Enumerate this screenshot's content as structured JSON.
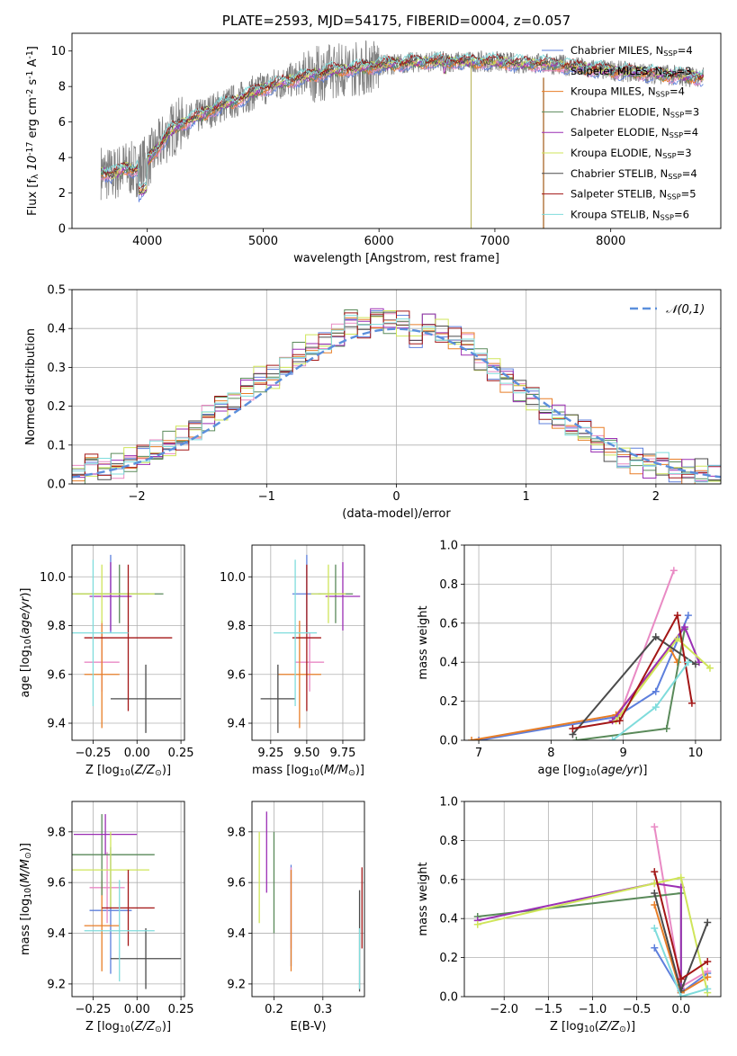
{
  "chart_data": [
    {
      "type": "line",
      "title": "PLATE=2593, MJD=54175, FIBERID=0004, z=0.057",
      "xlabel": "wavelength [Angstrom, rest frame]",
      "ylabel": "Flux [f$_\\lambda 10^{-17}$ erg cm$^{-2}$ s$^{-1}$ A$^{-1}$]",
      "xlim": [
        3350,
        8950
      ],
      "ylim": [
        0,
        11
      ],
      "xticks": [
        "4000",
        "5000",
        "6000",
        "7000",
        "8000"
      ],
      "yticks": [
        "0",
        "2",
        "4",
        "6",
        "8",
        "10"
      ],
      "observed": {
        "color": "#808080",
        "x": [
          3600,
          3700,
          3800,
          3900,
          4000,
          4100,
          4200,
          4300,
          4400,
          4500,
          4600,
          4800,
          5000,
          5200,
          5400,
          5600,
          5800,
          6000,
          6200,
          6400,
          6600,
          6800,
          7000,
          7200,
          7400,
          7600,
          7800,
          8000,
          8200,
          8400,
          8600,
          8800
        ],
        "y": [
          3.2,
          3.0,
          3.4,
          3.3,
          3.8,
          4.6,
          5.5,
          5.9,
          6.2,
          6.5,
          6.8,
          7.3,
          7.9,
          8.3,
          8.6,
          8.9,
          9.0,
          9.2,
          9.3,
          9.4,
          9.4,
          9.4,
          9.4,
          9.3,
          9.3,
          9.2,
          9.0,
          8.9,
          8.8,
          8.7,
          8.6,
          8.5
        ]
      },
      "series": [
        {
          "name": "Chabrier MILES, N$_{SSP}$=4",
          "color": "#5d7fdc"
        },
        {
          "name": "Salpeter MILES, N$_{SSP}$=3",
          "color": "#e98ac4"
        },
        {
          "name": "Kroupa MILES, N$_{SSP}$=4",
          "color": "#e87e27"
        },
        {
          "name": "Chabrier ELODIE, N$_{SSP}$=3",
          "color": "#5a8a5a"
        },
        {
          "name": "Salpeter ELODIE, N$_{SSP}$=4",
          "color": "#9b2fb4"
        },
        {
          "name": "Kroupa ELODIE, N$_{SSP}$=3",
          "color": "#cfe55a"
        },
        {
          "name": "Chabrier STELIB, N$_{SSP}$=4",
          "color": "#4b4b4b"
        },
        {
          "name": "Salpeter STELIB, N$_{SSP}$=5",
          "color": "#a31616"
        },
        {
          "name": "Kroupa STELIB, N$_{SSP}$=6",
          "color": "#7fdcdc"
        }
      ]
    },
    {
      "type": "bar",
      "xlabel": "(data-model)/error",
      "ylabel": "Normed distribution",
      "xlim": [
        -2.5,
        2.5
      ],
      "ylim": [
        0,
        0.5
      ],
      "xticks": [
        "-2",
        "-1",
        "0",
        "1",
        "2"
      ],
      "yticks": [
        "0.0",
        "0.1",
        "0.2",
        "0.3",
        "0.4",
        "0.5"
      ],
      "legend": "$\\mathcal{N}(0,1)$",
      "gaussian_color": "#5b8fdc",
      "bin_width": 0.1,
      "hist_centers": [
        -2.45,
        -2.35,
        -2.25,
        -2.15,
        -2.05,
        -1.95,
        -1.85,
        -1.75,
        -1.65,
        -1.55,
        -1.45,
        -1.35,
        -1.25,
        -1.15,
        -1.05,
        -0.95,
        -0.85,
        -0.75,
        -0.65,
        -0.55,
        -0.45,
        -0.35,
        -0.25,
        -0.15,
        -0.05,
        0.05,
        0.15,
        0.25,
        0.35,
        0.45,
        0.55,
        0.65,
        0.75,
        0.85,
        0.95,
        1.05,
        1.15,
        1.25,
        1.35,
        1.45,
        1.55,
        1.65,
        1.75,
        1.85,
        1.95,
        2.05,
        2.15,
        2.25,
        2.35,
        2.45
      ],
      "hist_values": [
        0.02,
        0.05,
        0.04,
        0.05,
        0.06,
        0.07,
        0.08,
        0.1,
        0.12,
        0.14,
        0.17,
        0.2,
        0.22,
        0.25,
        0.27,
        0.27,
        0.3,
        0.33,
        0.35,
        0.36,
        0.38,
        0.42,
        0.41,
        0.43,
        0.42,
        0.41,
        0.38,
        0.41,
        0.39,
        0.37,
        0.36,
        0.32,
        0.3,
        0.27,
        0.24,
        0.22,
        0.19,
        0.17,
        0.15,
        0.13,
        0.11,
        0.09,
        0.07,
        0.06,
        0.05,
        0.05,
        0.04,
        0.03,
        0.03,
        0.02
      ]
    },
    {
      "type": "scatter",
      "xlabel": "Z [log$_{10}$($Z/Z_\\odot$)]",
      "ylabel": "age  [log$_{10}$($age/yr$)]",
      "xlim": [
        -0.37,
        0.27
      ],
      "ylim": [
        9.33,
        10.13
      ],
      "xticks": [
        "-0.25",
        "0.00",
        "0.25"
      ],
      "yticks": [
        "9.4",
        "9.6",
        "9.8",
        "10.0"
      ],
      "points": [
        {
          "x": -0.15,
          "y": 9.93,
          "xerr": 0.22,
          "yerr": 0.16,
          "color": "#5d7fdc"
        },
        {
          "x": -0.2,
          "y": 9.65,
          "xerr": 0.1,
          "yerr": 0.12,
          "color": "#e98ac4"
        },
        {
          "x": -0.2,
          "y": 9.6,
          "xerr": 0.1,
          "yerr": 0.22,
          "color": "#e87e27"
        },
        {
          "x": -0.1,
          "y": 9.93,
          "xerr": 0.25,
          "yerr": 0.12,
          "color": "#5a8a5a"
        },
        {
          "x": -0.15,
          "y": 9.92,
          "xerr": 0.12,
          "yerr": 0.14,
          "color": "#9b2fb4"
        },
        {
          "x": -0.2,
          "y": 9.93,
          "xerr": 0.3,
          "yerr": 0.12,
          "color": "#cfe55a"
        },
        {
          "x": 0.05,
          "y": 9.5,
          "xerr": 0.2,
          "yerr": 0.14,
          "color": "#4b4b4b"
        },
        {
          "x": -0.05,
          "y": 9.75,
          "xerr": 0.25,
          "yerr": 0.3,
          "color": "#a31616"
        },
        {
          "x": -0.25,
          "y": 9.77,
          "xerr": 0.2,
          "yerr": 0.3,
          "color": "#7fdcdc"
        }
      ]
    },
    {
      "type": "scatter",
      "xlabel": "mass [log$_{10}$($M/M_\\odot$)]",
      "ylabel": "",
      "xlim": [
        9.12,
        9.9
      ],
      "ylim": [
        9.33,
        10.13
      ],
      "xticks": [
        "9.25",
        "9.50",
        "9.75"
      ],
      "yticks": [
        "9.4",
        "9.6",
        "9.8",
        "10.0"
      ],
      "points": [
        {
          "x": 9.5,
          "y": 9.93,
          "xerr": 0.1,
          "yerr": 0.16,
          "color": "#5d7fdc"
        },
        {
          "x": 9.52,
          "y": 9.65,
          "xerr": 0.1,
          "yerr": 0.12,
          "color": "#e98ac4"
        },
        {
          "x": 9.45,
          "y": 9.6,
          "xerr": 0.15,
          "yerr": 0.22,
          "color": "#e87e27"
        },
        {
          "x": 9.7,
          "y": 9.93,
          "xerr": 0.12,
          "yerr": 0.12,
          "color": "#5a8a5a"
        },
        {
          "x": 9.75,
          "y": 9.92,
          "xerr": 0.12,
          "yerr": 0.14,
          "color": "#9b2fb4"
        },
        {
          "x": 9.65,
          "y": 9.93,
          "xerr": 0.12,
          "yerr": 0.12,
          "color": "#cfe55a"
        },
        {
          "x": 9.3,
          "y": 9.5,
          "xerr": 0.12,
          "yerr": 0.14,
          "color": "#4b4b4b"
        },
        {
          "x": 9.5,
          "y": 9.75,
          "xerr": 0.1,
          "yerr": 0.3,
          "color": "#a31616"
        },
        {
          "x": 9.42,
          "y": 9.77,
          "xerr": 0.15,
          "yerr": 0.3,
          "color": "#7fdcdc"
        }
      ]
    },
    {
      "type": "line",
      "xlabel": "age  [log$_{10}$($age/yr$)]",
      "ylabel": "mass weight",
      "xlim": [
        6.8,
        10.35
      ],
      "ylim": [
        0,
        1
      ],
      "xticks": [
        "7",
        "8",
        "9",
        "10"
      ],
      "yticks": [
        "0.0",
        "0.2",
        "0.4",
        "0.6",
        "0.8",
        "1.0"
      ],
      "series": [
        {
          "color": "#5d7fdc",
          "x": [
            7.0,
            8.9,
            9.45,
            9.9
          ],
          "y": [
            0.0,
            0.12,
            0.25,
            0.64
          ]
        },
        {
          "color": "#e98ac4",
          "x": [
            8.95,
            9.7
          ],
          "y": [
            0.13,
            0.87
          ]
        },
        {
          "color": "#e87e27",
          "x": [
            6.9,
            8.9,
            9.65,
            9.75
          ],
          "y": [
            0.0,
            0.13,
            0.47,
            0.4
          ]
        },
        {
          "color": "#5a8a5a",
          "x": [
            8.35,
            9.6,
            9.85
          ],
          "y": [
            0.0,
            0.06,
            0.57
          ]
        },
        {
          "color": "#9b2fb4",
          "x": [
            8.85,
            9.85,
            10.05
          ],
          "y": [
            0.1,
            0.58,
            0.4
          ]
        },
        {
          "color": "#cfe55a",
          "x": [
            8.9,
            9.75,
            10.2
          ],
          "y": [
            0.1,
            0.52,
            0.37
          ]
        },
        {
          "color": "#4b4b4b",
          "x": [
            8.3,
            9.45,
            10.0
          ],
          "y": [
            0.03,
            0.53,
            0.39
          ]
        },
        {
          "color": "#a31616",
          "x": [
            8.3,
            8.95,
            9.75,
            9.95
          ],
          "y": [
            0.06,
            0.1,
            0.64,
            0.19
          ]
        },
        {
          "color": "#7fdcdc",
          "x": [
            8.85,
            9.45,
            9.9
          ],
          "y": [
            0.0,
            0.17,
            0.4
          ]
        }
      ]
    },
    {
      "type": "scatter",
      "xlabel": "Z [log$_{10}$($Z/Z_\\odot$)]",
      "ylabel": "mass [log$_{10}$($M/M_\\odot$)]",
      "xlim": [
        -0.37,
        0.27
      ],
      "ylim": [
        9.15,
        9.92
      ],
      "xticks": [
        "-0.25",
        "0.00",
        "0.25"
      ],
      "yticks": [
        "9.2",
        "9.4",
        "9.6",
        "9.8"
      ],
      "points": [
        {
          "x": -0.15,
          "y": 9.49,
          "xerr": 0.12,
          "yerr": 0.25,
          "color": "#5d7fdc"
        },
        {
          "x": -0.17,
          "y": 9.58,
          "xerr": 0.1,
          "yerr": 0.14,
          "color": "#e98ac4"
        },
        {
          "x": -0.2,
          "y": 9.43,
          "xerr": 0.1,
          "yerr": 0.18,
          "color": "#e87e27"
        },
        {
          "x": -0.2,
          "y": 9.71,
          "xerr": 0.3,
          "yerr": 0.16,
          "color": "#5a8a5a"
        },
        {
          "x": -0.18,
          "y": 9.79,
          "xerr": 0.18,
          "yerr": 0.08,
          "color": "#9b2fb4"
        },
        {
          "x": -0.15,
          "y": 9.65,
          "xerr": 0.22,
          "yerr": 0.15,
          "color": "#cfe55a"
        },
        {
          "x": 0.05,
          "y": 9.3,
          "xerr": 0.2,
          "yerr": 0.12,
          "color": "#4b4b4b"
        },
        {
          "x": -0.05,
          "y": 9.5,
          "xerr": 0.15,
          "yerr": 0.15,
          "color": "#a31616"
        },
        {
          "x": -0.1,
          "y": 9.41,
          "xerr": 0.2,
          "yerr": 0.2,
          "color": "#7fdcdc"
        }
      ]
    },
    {
      "type": "scatter",
      "xlabel": "E(B-V)",
      "ylabel": "",
      "xlim": [
        0.155,
        0.385
      ],
      "ylim": [
        9.15,
        9.92
      ],
      "xticks": [
        "0.2",
        "0.3"
      ],
      "yticks": [
        "9.2",
        "9.4",
        "9.6",
        "9.8"
      ],
      "points": [
        {
          "x": 0.235,
          "y": 9.47,
          "yerr": 0.2,
          "color": "#5d7fdc"
        },
        {
          "x": 0.235,
          "y": 9.5,
          "yerr": 0.16,
          "color": "#e98ac4"
        },
        {
          "x": 0.235,
          "y": 9.45,
          "yerr": 0.2,
          "color": "#e87e27"
        },
        {
          "x": 0.2,
          "y": 9.6,
          "yerr": 0.2,
          "color": "#5a8a5a"
        },
        {
          "x": 0.185,
          "y": 9.72,
          "yerr": 0.16,
          "color": "#9b2fb4"
        },
        {
          "x": 0.17,
          "y": 9.62,
          "yerr": 0.18,
          "color": "#cfe55a"
        },
        {
          "x": 0.375,
          "y": 9.37,
          "yerr": 0.2,
          "color": "#4b4b4b"
        },
        {
          "x": 0.38,
          "y": 9.5,
          "yerr": 0.16,
          "color": "#a31616"
        },
        {
          "x": 0.375,
          "y": 9.3,
          "yerr": 0.12,
          "color": "#7fdcdc"
        }
      ]
    },
    {
      "type": "line",
      "xlabel": "Z [log$_{10}$($Z/Z_\\odot$)]",
      "ylabel": "mass weight",
      "xlim": [
        -2.45,
        0.45
      ],
      "ylim": [
        0,
        1
      ],
      "xticks": [
        "-2.0",
        "-1.5",
        "-1.0",
        "-0.5",
        "0.0"
      ],
      "yticks": [
        "0.0",
        "0.2",
        "0.4",
        "0.6",
        "0.8",
        "1.0"
      ],
      "series": [
        {
          "color": "#5d7fdc",
          "x": [
            -0.3,
            0.0,
            0.3
          ],
          "y": [
            0.25,
            0.02,
            0.12
          ]
        },
        {
          "color": "#e98ac4",
          "x": [
            -0.3,
            0.0,
            0.3
          ],
          "y": [
            0.87,
            0.05,
            0.13
          ]
        },
        {
          "color": "#e87e27",
          "x": [
            -0.3,
            0.0,
            0.3
          ],
          "y": [
            0.47,
            0.02,
            0.1
          ]
        },
        {
          "color": "#5a8a5a",
          "x": [
            -2.3,
            0.0,
            0.0
          ],
          "y": [
            0.41,
            0.53,
            0.06
          ]
        },
        {
          "color": "#9b2fb4",
          "x": [
            -2.3,
            -0.3,
            0.0,
            0.0
          ],
          "y": [
            0.39,
            0.58,
            0.56,
            0.04
          ]
        },
        {
          "color": "#cfe55a",
          "x": [
            -2.3,
            -0.3,
            0.0,
            0.3
          ],
          "y": [
            0.37,
            0.58,
            0.61,
            0.02
          ]
        },
        {
          "color": "#4b4b4b",
          "x": [
            -0.3,
            0.0,
            0.3
          ],
          "y": [
            0.53,
            0.03,
            0.38
          ]
        },
        {
          "color": "#a31616",
          "x": [
            -0.3,
            0.0,
            0.3
          ],
          "y": [
            0.64,
            0.09,
            0.18
          ]
        },
        {
          "color": "#7fdcdc",
          "x": [
            -0.3,
            0.0,
            0.3
          ],
          "y": [
            0.35,
            0.0,
            0.04
          ]
        }
      ]
    }
  ]
}
